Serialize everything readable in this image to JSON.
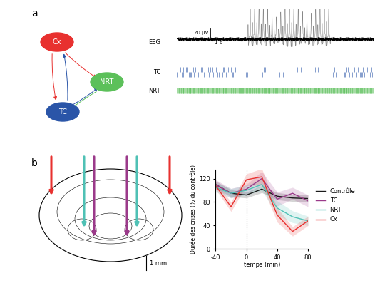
{
  "panels": {
    "a": {
      "label": "a",
      "nodes": [
        {
          "label": "Cx",
          "color": "#e8312f"
        },
        {
          "label": "NRT",
          "color": "#5cc05a"
        },
        {
          "label": "TC",
          "color": "#2a55a8"
        }
      ],
      "edges": [
        [
          "Cx",
          "TC",
          "#e8312f"
        ],
        [
          "Cx",
          "NRT",
          "#e8312f"
        ],
        [
          "TC",
          "Cx",
          "#2a55a8"
        ],
        [
          "TC",
          "NRT",
          "#2a55a8"
        ],
        [
          "NRT",
          "TC",
          "#5cc05a"
        ]
      ],
      "eeg": {
        "label": "EEG",
        "scale_amplitude": "20 µV",
        "scale_time": "1 s"
      },
      "rasters": [
        {
          "label": "TC",
          "color": "#2a55a8"
        },
        {
          "label": "NRT",
          "color": "#5cc05a"
        }
      ]
    },
    "b": {
      "label": "b",
      "scale_bar": "1 mm",
      "probe_colors": [
        "#e8312f",
        "#4fc1b5",
        "#9b3a8a"
      ]
    }
  },
  "chart_data": {
    "type": "line",
    "xlabel": "temps (min)",
    "ylabel": "Durée des crises (% du contrôle)",
    "x": [
      -40,
      -20,
      0,
      20,
      40,
      60,
      80
    ],
    "xlim": [
      -40,
      80
    ],
    "xticks": [
      -40,
      0,
      40,
      80
    ],
    "ylim": [
      0,
      135
    ],
    "yticks": [
      0,
      40,
      80,
      120
    ],
    "reference_x": 0,
    "legend": "center left",
    "series": [
      {
        "name": "Contrôle",
        "color": "#1a1a1a",
        "values": [
          110,
          95,
          92,
          102,
          90,
          87,
          86
        ],
        "error": [
          6,
          6,
          5,
          6,
          6,
          6,
          6
        ]
      },
      {
        "name": "TC",
        "color": "#9b3a8a",
        "values": [
          110,
          95,
          102,
          120,
          85,
          95,
          82
        ],
        "error": [
          8,
          8,
          8,
          12,
          12,
          10,
          10
        ]
      },
      {
        "name": "NRT",
        "color": "#4fc1b5",
        "values": [
          105,
          95,
          100,
          110,
          70,
          55,
          48
        ],
        "error": [
          8,
          8,
          8,
          10,
          12,
          10,
          8
        ]
      },
      {
        "name": "Cx",
        "color": "#e8312f",
        "values": [
          108,
          72,
          118,
          123,
          58,
          30,
          48
        ],
        "error": [
          6,
          8,
          10,
          14,
          12,
          8,
          8
        ]
      }
    ]
  }
}
